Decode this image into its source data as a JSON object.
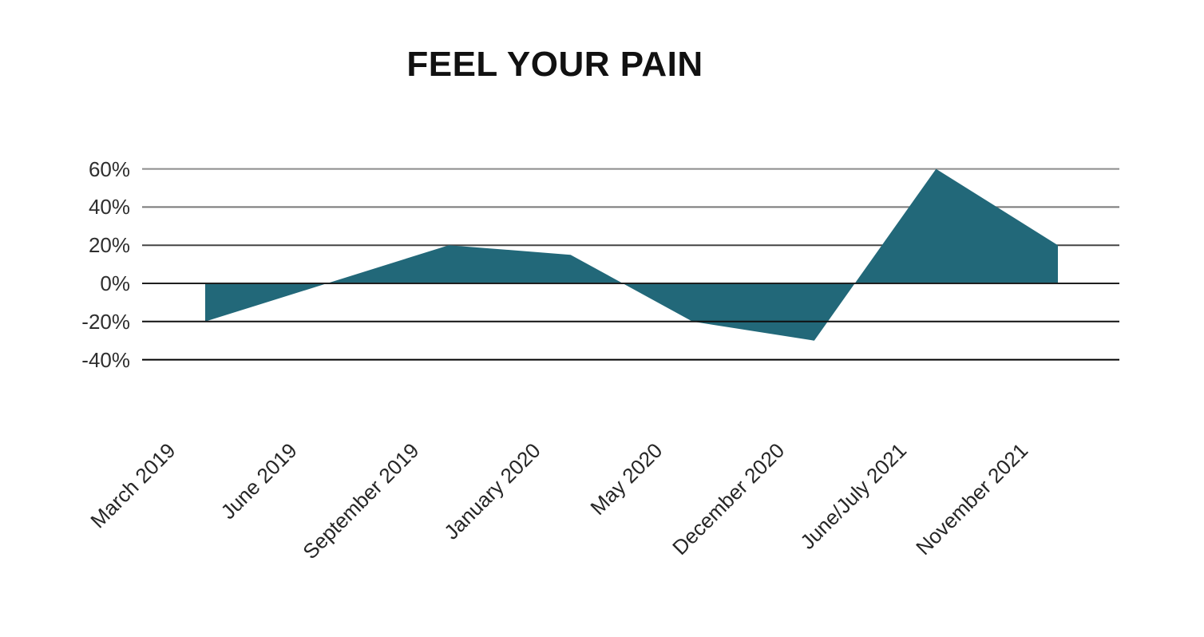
{
  "chart": {
    "title": "FEEL YOUR PAIN"
  },
  "chart_data": {
    "type": "area",
    "title": "FEEL YOUR PAIN",
    "xlabel": "",
    "ylabel": "",
    "categories": [
      "March 2019",
      "June 2019",
      "September 2019",
      "January 2020",
      "May 2020",
      "December 2020",
      "June/July 2021",
      "November 2021"
    ],
    "values": [
      -20,
      0,
      20,
      15,
      -20,
      -30,
      60,
      20
    ],
    "unit": "%",
    "baseline": 0,
    "ylim": [
      -40,
      60
    ],
    "y_ticks": [
      60,
      40,
      20,
      0,
      -20,
      -40
    ],
    "y_tick_labels": [
      "60%",
      "40%",
      "20%",
      "0%",
      "-20%",
      "-40%"
    ],
    "grid": "horizontal",
    "legend": false,
    "x_labels_rotation_deg": -45,
    "colors": {
      "area_fill": "#226879",
      "grid_upper": "#8c8c8c",
      "grid_colors": [
        "#8c8c8c",
        "#787878",
        "#454545",
        "#1f1f1f",
        "#101010",
        "#000000"
      ],
      "axis_text": "#2e2e2e",
      "title_text": "#111111",
      "background": "#ffffff"
    }
  }
}
